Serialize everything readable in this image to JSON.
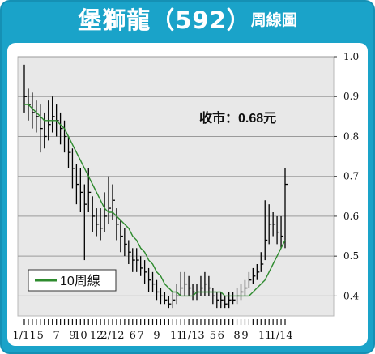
{
  "header": {
    "title": "堡獅龍（592）",
    "subtitle": "周線圖"
  },
  "colors": {
    "frame": "#1aa3c9",
    "plot_bg": "#e8e8e8",
    "price": "#000000",
    "ma": "#2e8b2e"
  },
  "chart_data": {
    "type": "line",
    "price_type": "weekly price bars",
    "annotation": "收市：0.68元",
    "legend": "10周線",
    "legend_position": "bottom-left",
    "ylim": [
      0.35,
      1.0
    ],
    "yticks": [
      "1.0",
      "0.9",
      "0.8",
      "0.7",
      "0.6",
      "0.5",
      "0.4"
    ],
    "ytick_values": [
      1.0,
      0.9,
      0.8,
      0.7,
      0.6,
      0.5,
      0.4
    ],
    "grid": "horizontal",
    "xlabels": [
      "1/11",
      "5",
      "7",
      "9",
      "10",
      "12",
      "2/12",
      "6",
      "7",
      "9",
      "11",
      "1/13",
      "5",
      "6",
      "8",
      "9",
      "11",
      "1/14"
    ],
    "xlabel_week": [
      0,
      4,
      8,
      12,
      14,
      18,
      22,
      27,
      29,
      33,
      38,
      42,
      47,
      49,
      53,
      55,
      60,
      64
    ],
    "weeks": 66,
    "price": {
      "close": [
        0.9,
        0.88,
        0.86,
        0.85,
        0.82,
        0.8,
        0.83,
        0.85,
        0.84,
        0.82,
        0.8,
        0.76,
        0.72,
        0.68,
        0.66,
        0.63,
        0.66,
        0.6,
        0.58,
        0.57,
        0.6,
        0.62,
        0.64,
        0.58,
        0.55,
        0.53,
        0.51,
        0.49,
        0.49,
        0.47,
        0.46,
        0.44,
        0.43,
        0.41,
        0.4,
        0.39,
        0.38,
        0.39,
        0.4,
        0.42,
        0.43,
        0.42,
        0.41,
        0.41,
        0.42,
        0.43,
        0.42,
        0.4,
        0.39,
        0.39,
        0.38,
        0.39,
        0.39,
        0.4,
        0.41,
        0.42,
        0.44,
        0.45,
        0.46,
        0.48,
        0.54,
        0.58,
        0.58,
        0.56,
        0.55,
        0.68
      ],
      "high": [
        0.98,
        0.92,
        0.91,
        0.89,
        0.88,
        0.86,
        0.89,
        0.9,
        0.88,
        0.86,
        0.84,
        0.8,
        0.77,
        0.73,
        0.72,
        0.68,
        0.72,
        0.65,
        0.62,
        0.62,
        0.66,
        0.7,
        0.68,
        0.62,
        0.59,
        0.57,
        0.54,
        0.52,
        0.52,
        0.5,
        0.49,
        0.47,
        0.46,
        0.44,
        0.42,
        0.41,
        0.4,
        0.41,
        0.43,
        0.46,
        0.46,
        0.45,
        0.43,
        0.43,
        0.45,
        0.46,
        0.45,
        0.42,
        0.41,
        0.41,
        0.4,
        0.41,
        0.41,
        0.42,
        0.43,
        0.44,
        0.46,
        0.47,
        0.48,
        0.51,
        0.64,
        0.63,
        0.61,
        0.6,
        0.6,
        0.72
      ],
      "low": [
        0.86,
        0.84,
        0.82,
        0.81,
        0.76,
        0.77,
        0.79,
        0.81,
        0.8,
        0.78,
        0.76,
        0.72,
        0.67,
        0.63,
        0.61,
        0.49,
        0.61,
        0.56,
        0.55,
        0.54,
        0.56,
        0.58,
        0.59,
        0.54,
        0.51,
        0.5,
        0.48,
        0.46,
        0.46,
        0.45,
        0.43,
        0.41,
        0.41,
        0.39,
        0.38,
        0.38,
        0.37,
        0.37,
        0.38,
        0.4,
        0.4,
        0.4,
        0.39,
        0.39,
        0.4,
        0.4,
        0.4,
        0.38,
        0.37,
        0.37,
        0.37,
        0.37,
        0.38,
        0.38,
        0.39,
        0.4,
        0.42,
        0.43,
        0.44,
        0.46,
        0.49,
        0.53,
        0.55,
        0.53,
        0.52,
        0.52
      ]
    },
    "ma10": [
      0.88,
      0.88,
      0.87,
      0.86,
      0.85,
      0.84,
      0.84,
      0.84,
      0.84,
      0.83,
      0.82,
      0.8,
      0.78,
      0.76,
      0.74,
      0.72,
      0.7,
      0.68,
      0.66,
      0.64,
      0.62,
      0.61,
      0.61,
      0.6,
      0.59,
      0.58,
      0.57,
      0.55,
      0.54,
      0.52,
      0.51,
      0.49,
      0.48,
      0.46,
      0.45,
      0.43,
      0.42,
      0.41,
      0.41,
      0.4,
      0.4,
      0.4,
      0.4,
      0.41,
      0.41,
      0.41,
      0.41,
      0.41,
      0.41,
      0.41,
      0.4,
      0.4,
      0.4,
      0.4,
      0.4,
      0.4,
      0.4,
      0.41,
      0.42,
      0.43,
      0.44,
      0.46,
      0.48,
      0.5,
      0.52,
      0.54
    ]
  }
}
